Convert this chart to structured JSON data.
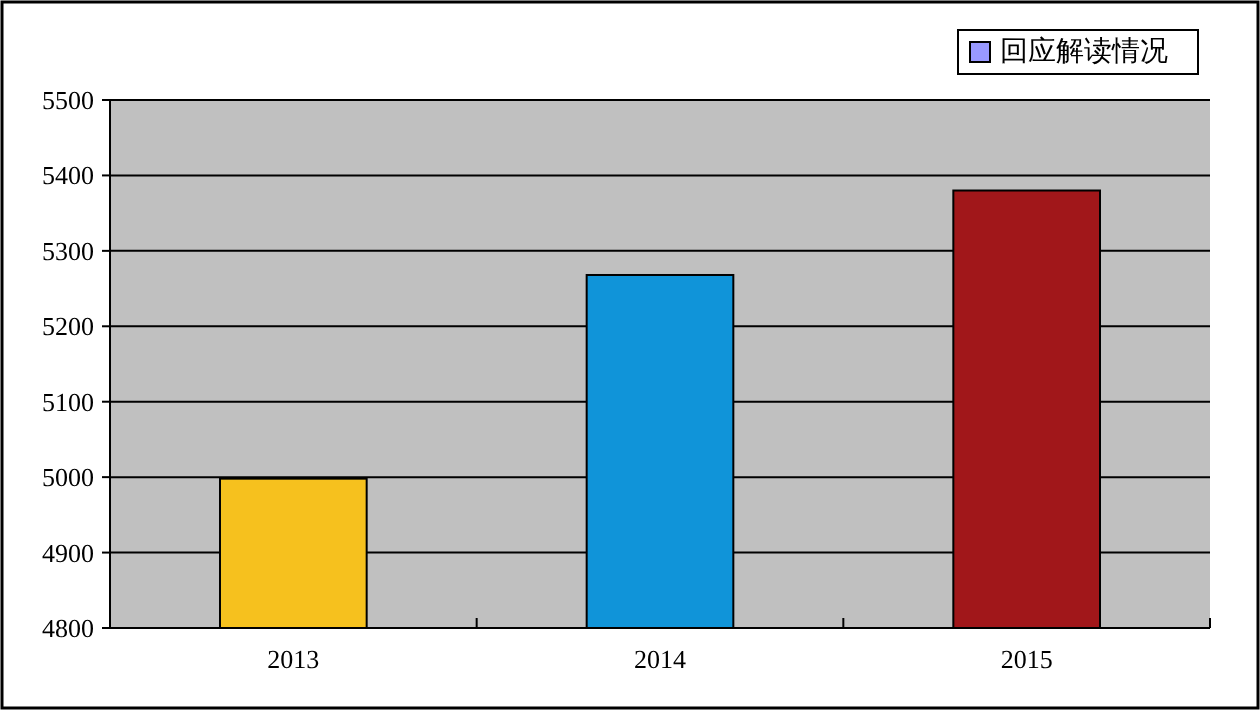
{
  "chart_data": {
    "type": "bar",
    "categories": [
      "2013",
      "2014",
      "2015"
    ],
    "series": [
      {
        "name": "回应解读情况",
        "color": "#9999ff",
        "colors": [
          "#f6c11e",
          "#1094d9",
          "#a1171a"
        ],
        "values": [
          4998,
          5268,
          5380
        ]
      }
    ],
    "ylim": [
      4800,
      5500
    ],
    "yticks": [
      4800,
      4900,
      5000,
      5100,
      5200,
      5300,
      5400,
      5500
    ],
    "grid": "y",
    "legend": "top right"
  }
}
